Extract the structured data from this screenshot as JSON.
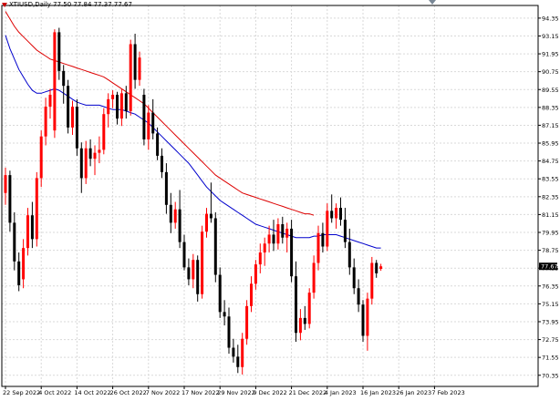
{
  "header": {
    "symbol_line": "XTIUSD,Daily  77.50 77.84 77.37 77.67",
    "arrow_icon": "down-triangle-icon",
    "arrow_color": "#cc0000"
  },
  "colors": {
    "up": "#ff0000",
    "down": "#000000",
    "ma_fast": "#0000cc",
    "ma_slow": "#dd0000",
    "grid": "#d9d9d9",
    "frame": "#000000",
    "price_tag_bg": "#000000",
    "price_tag_text": "#ffffff",
    "background": "#ffffff"
  },
  "chart_data": {
    "type": "candlestick",
    "symbol": "XTIUSD",
    "timeframe": "Daily",
    "last_price": "77.67",
    "ylim": [
      69.6,
      95.2
    ],
    "y_ticks": [
      "94.35",
      "93.15",
      "91.95",
      "90.75",
      "89.55",
      "88.35",
      "87.15",
      "85.95",
      "84.75",
      "83.55",
      "82.35",
      "81.15",
      "79.95",
      "78.75",
      "77.55",
      "76.35",
      "75.15",
      "73.95",
      "72.75",
      "71.55",
      "70.35"
    ],
    "x_tick_labels": [
      "22 Sep 2022",
      "4 Oct 2022",
      "14 Oct 2022",
      "26 Oct 2022",
      "7 Nov 2022",
      "17 Nov 2022",
      "29 Nov 2022",
      "9 Dec 2022",
      "21 Dec 2022",
      "4 Jan 2023",
      "16 Jan 2023",
      "26 Jan 2023",
      "7 Feb 2023"
    ],
    "x_tick_index": [
      0,
      8,
      16,
      24,
      32,
      40,
      48,
      56,
      64,
      72,
      80,
      88,
      96
    ],
    "grid": true,
    "candles": [
      {
        "o": 82.6,
        "h": 84.3,
        "l": 81.8,
        "c": 83.8
      },
      {
        "o": 83.8,
        "h": 84.1,
        "l": 80.0,
        "c": 80.6
      },
      {
        "o": 80.6,
        "h": 81.3,
        "l": 77.4,
        "c": 78.0
      },
      {
        "o": 78.0,
        "h": 78.6,
        "l": 76.0,
        "c": 76.4
      },
      {
        "o": 76.8,
        "h": 79.5,
        "l": 76.2,
        "c": 78.9
      },
      {
        "o": 78.9,
        "h": 81.6,
        "l": 78.4,
        "c": 81.1
      },
      {
        "o": 81.1,
        "h": 82.0,
        "l": 78.9,
        "c": 79.5
      },
      {
        "o": 79.5,
        "h": 84.0,
        "l": 79.0,
        "c": 83.6
      },
      {
        "o": 83.6,
        "h": 86.8,
        "l": 83.0,
        "c": 86.4
      },
      {
        "o": 86.4,
        "h": 89.0,
        "l": 85.8,
        "c": 88.4
      },
      {
        "o": 88.4,
        "h": 89.6,
        "l": 87.6,
        "c": 89.2
      },
      {
        "o": 86.8,
        "h": 93.6,
        "l": 86.3,
        "c": 93.4
      },
      {
        "o": 93.4,
        "h": 93.7,
        "l": 90.2,
        "c": 90.8
      },
      {
        "o": 90.8,
        "h": 91.2,
        "l": 88.6,
        "c": 89.8
      },
      {
        "o": 89.8,
        "h": 90.2,
        "l": 86.6,
        "c": 87.0
      },
      {
        "o": 87.0,
        "h": 88.8,
        "l": 86.5,
        "c": 88.4
      },
      {
        "o": 88.4,
        "h": 88.9,
        "l": 85.1,
        "c": 85.6
      },
      {
        "o": 85.6,
        "h": 86.0,
        "l": 82.6,
        "c": 83.6
      },
      {
        "o": 83.6,
        "h": 86.1,
        "l": 83.2,
        "c": 85.6
      },
      {
        "o": 85.6,
        "h": 86.2,
        "l": 84.4,
        "c": 84.9
      },
      {
        "o": 84.9,
        "h": 85.8,
        "l": 83.8,
        "c": 85.3
      },
      {
        "o": 85.3,
        "h": 86.4,
        "l": 84.6,
        "c": 85.5
      },
      {
        "o": 85.5,
        "h": 88.3,
        "l": 85.2,
        "c": 87.9
      },
      {
        "o": 87.9,
        "h": 89.3,
        "l": 87.0,
        "c": 88.9
      },
      {
        "o": 88.9,
        "h": 89.5,
        "l": 88.3,
        "c": 89.2
      },
      {
        "o": 89.2,
        "h": 89.4,
        "l": 87.2,
        "c": 87.6
      },
      {
        "o": 87.6,
        "h": 89.6,
        "l": 87.1,
        "c": 89.3
      },
      {
        "o": 89.3,
        "h": 89.8,
        "l": 87.6,
        "c": 88.1
      },
      {
        "o": 88.1,
        "h": 92.9,
        "l": 87.8,
        "c": 92.6
      },
      {
        "o": 92.6,
        "h": 93.3,
        "l": 89.6,
        "c": 90.2
      },
      {
        "o": 90.2,
        "h": 92.1,
        "l": 89.8,
        "c": 91.7
      },
      {
        "o": 89.2,
        "h": 89.6,
        "l": 85.8,
        "c": 86.2
      },
      {
        "o": 86.2,
        "h": 88.5,
        "l": 85.5,
        "c": 88.0
      },
      {
        "o": 88.0,
        "h": 88.9,
        "l": 86.2,
        "c": 86.6
      },
      {
        "o": 86.6,
        "h": 87.0,
        "l": 84.8,
        "c": 85.1
      },
      {
        "o": 85.1,
        "h": 85.6,
        "l": 83.6,
        "c": 84.0
      },
      {
        "o": 84.0,
        "h": 84.6,
        "l": 81.2,
        "c": 81.8
      },
      {
        "o": 81.8,
        "h": 82.6,
        "l": 79.9,
        "c": 80.6
      },
      {
        "o": 80.6,
        "h": 82.0,
        "l": 80.2,
        "c": 81.5
      },
      {
        "o": 81.5,
        "h": 82.8,
        "l": 78.9,
        "c": 79.3
      },
      {
        "o": 79.3,
        "h": 79.8,
        "l": 77.4,
        "c": 77.6
      },
      {
        "o": 77.6,
        "h": 78.2,
        "l": 76.4,
        "c": 76.8
      },
      {
        "o": 76.8,
        "h": 78.5,
        "l": 76.2,
        "c": 78.1
      },
      {
        "o": 78.1,
        "h": 78.4,
        "l": 75.3,
        "c": 75.8
      },
      {
        "o": 75.8,
        "h": 80.4,
        "l": 75.5,
        "c": 80.0
      },
      {
        "o": 80.0,
        "h": 81.6,
        "l": 79.6,
        "c": 81.2
      },
      {
        "o": 81.2,
        "h": 83.3,
        "l": 80.6,
        "c": 80.9
      },
      {
        "o": 80.9,
        "h": 81.3,
        "l": 76.6,
        "c": 77.1
      },
      {
        "o": 77.1,
        "h": 77.6,
        "l": 74.2,
        "c": 74.6
      },
      {
        "o": 74.6,
        "h": 75.4,
        "l": 73.7,
        "c": 74.3
      },
      {
        "o": 74.3,
        "h": 74.9,
        "l": 71.8,
        "c": 72.2
      },
      {
        "o": 72.2,
        "h": 72.8,
        "l": 71.2,
        "c": 71.6
      },
      {
        "o": 71.6,
        "h": 72.4,
        "l": 70.5,
        "c": 70.9
      },
      {
        "o": 70.9,
        "h": 73.2,
        "l": 70.4,
        "c": 72.8
      },
      {
        "o": 72.8,
        "h": 75.4,
        "l": 72.4,
        "c": 75.0
      },
      {
        "o": 75.0,
        "h": 77.0,
        "l": 74.6,
        "c": 76.5
      },
      {
        "o": 76.5,
        "h": 78.1,
        "l": 76.1,
        "c": 77.8
      },
      {
        "o": 77.8,
        "h": 79.2,
        "l": 77.2,
        "c": 78.6
      },
      {
        "o": 78.6,
        "h": 79.6,
        "l": 77.7,
        "c": 79.2
      },
      {
        "o": 79.2,
        "h": 80.4,
        "l": 78.6,
        "c": 79.8
      },
      {
        "o": 79.8,
        "h": 80.8,
        "l": 78.7,
        "c": 79.2
      },
      {
        "o": 79.2,
        "h": 80.9,
        "l": 78.8,
        "c": 80.5
      },
      {
        "o": 80.5,
        "h": 81.0,
        "l": 79.2,
        "c": 79.6
      },
      {
        "o": 79.6,
        "h": 80.6,
        "l": 78.6,
        "c": 80.2
      },
      {
        "o": 80.2,
        "h": 80.8,
        "l": 76.6,
        "c": 77.0
      },
      {
        "o": 77.0,
        "h": 78.0,
        "l": 72.6,
        "c": 73.2
      },
      {
        "o": 73.2,
        "h": 74.8,
        "l": 72.7,
        "c": 74.2
      },
      {
        "o": 74.2,
        "h": 75.0,
        "l": 73.4,
        "c": 73.8
      },
      {
        "o": 73.8,
        "h": 76.2,
        "l": 73.5,
        "c": 75.9
      },
      {
        "o": 75.9,
        "h": 78.4,
        "l": 75.5,
        "c": 77.9
      },
      {
        "o": 77.9,
        "h": 80.4,
        "l": 77.4,
        "c": 79.9
      },
      {
        "o": 79.9,
        "h": 80.6,
        "l": 78.6,
        "c": 79.0
      },
      {
        "o": 79.0,
        "h": 81.9,
        "l": 78.7,
        "c": 81.4
      },
      {
        "o": 81.4,
        "h": 82.5,
        "l": 80.6,
        "c": 80.9
      },
      {
        "o": 80.9,
        "h": 81.9,
        "l": 80.2,
        "c": 81.6
      },
      {
        "o": 81.6,
        "h": 82.3,
        "l": 80.4,
        "c": 80.8
      },
      {
        "o": 80.8,
        "h": 81.6,
        "l": 78.9,
        "c": 79.3
      },
      {
        "o": 79.3,
        "h": 80.2,
        "l": 77.1,
        "c": 77.6
      },
      {
        "o": 77.6,
        "h": 78.2,
        "l": 75.8,
        "c": 76.2
      },
      {
        "o": 76.2,
        "h": 76.8,
        "l": 74.6,
        "c": 75.1
      },
      {
        "o": 75.1,
        "h": 75.4,
        "l": 72.6,
        "c": 73.0
      },
      {
        "o": 73.0,
        "h": 75.9,
        "l": 72.0,
        "c": 75.5
      },
      {
        "o": 75.5,
        "h": 78.3,
        "l": 75.1,
        "c": 77.9
      },
      {
        "o": 77.9,
        "h": 78.1,
        "l": 76.9,
        "c": 77.2
      },
      {
        "o": 77.5,
        "h": 77.84,
        "l": 77.37,
        "c": 77.67
      }
    ],
    "series": [
      {
        "kind": "moving_average",
        "color": "#0000cc",
        "values": [
          93.2,
          92.3,
          91.6,
          90.9,
          90.4,
          89.9,
          89.5,
          89.3,
          89.3,
          89.4,
          89.5,
          89.6,
          89.5,
          89.3,
          89.1,
          88.9,
          88.7,
          88.6,
          88.5,
          88.5,
          88.5,
          88.5,
          88.4,
          88.3,
          88.2,
          88.2,
          88.2,
          88.1,
          88.0,
          87.9,
          87.7,
          87.5,
          87.3,
          87.0,
          86.7,
          86.4,
          86.1,
          85.8,
          85.5,
          85.2,
          84.9,
          84.6,
          84.2,
          83.8,
          83.4,
          83.0,
          82.7,
          82.4,
          82.1,
          81.9,
          81.7,
          81.5,
          81.3,
          81.1,
          80.9,
          80.7,
          80.5,
          80.4,
          80.3,
          80.2,
          80.1,
          80.0,
          79.9,
          79.8,
          79.7,
          79.6,
          79.6,
          79.6,
          79.6,
          79.7,
          79.7,
          79.8,
          79.8,
          79.8,
          79.8,
          79.7,
          79.6,
          79.5,
          79.4,
          79.3,
          79.2,
          79.1,
          79.0,
          78.9,
          78.9
        ]
      },
      {
        "kind": "moving_average",
        "color": "#dd0000",
        "values": [
          94.8,
          94.3,
          93.8,
          93.4,
          93.1,
          92.8,
          92.5,
          92.2,
          92.0,
          91.8,
          91.6,
          91.5,
          91.4,
          91.3,
          91.2,
          91.1,
          91.0,
          90.9,
          90.8,
          90.7,
          90.6,
          90.5,
          90.4,
          90.2,
          90.0,
          89.8,
          89.6,
          89.4,
          89.2,
          89.0,
          88.8,
          88.6,
          88.3,
          88.0,
          87.7,
          87.4,
          87.1,
          86.8,
          86.5,
          86.2,
          85.9,
          85.6,
          85.3,
          85.0,
          84.7,
          84.4,
          84.1,
          83.8,
          83.6,
          83.4,
          83.2,
          83.0,
          82.8,
          82.6,
          82.5,
          82.4,
          82.3,
          82.2,
          82.1,
          82.0,
          81.9,
          81.8,
          81.7,
          81.6,
          81.5,
          81.4,
          81.3,
          81.2,
          81.2,
          81.1
        ]
      }
    ]
  }
}
